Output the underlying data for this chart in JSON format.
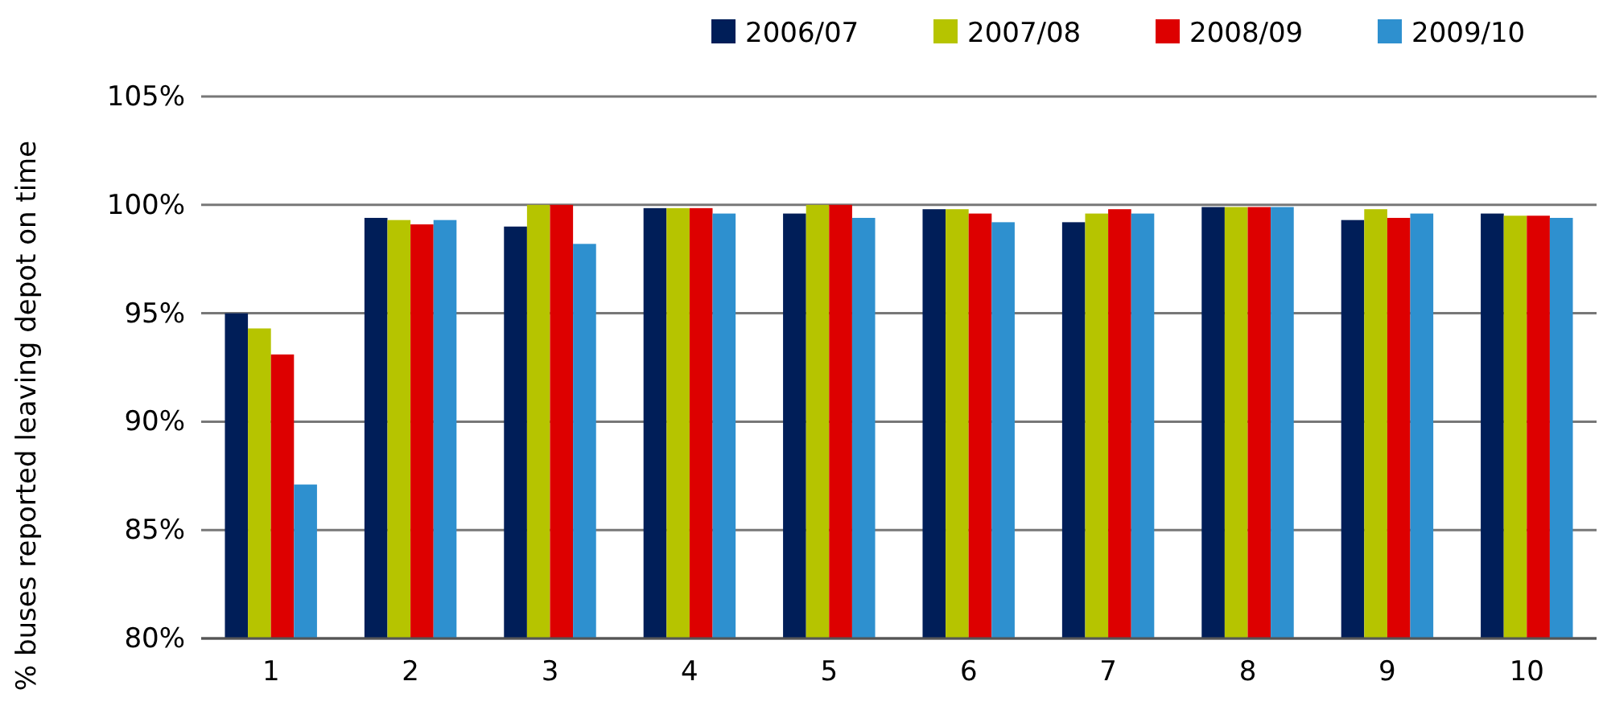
{
  "chart_data": {
    "type": "bar",
    "ylabel": "% buses reported leaving depot on time",
    "categories": [
      "1",
      "2",
      "3",
      "4",
      "5",
      "6",
      "7",
      "8",
      "9",
      "10"
    ],
    "series": [
      {
        "name": "2006/07",
        "color": "#001e58",
        "values": [
          95.0,
          99.4,
          99.0,
          99.85,
          99.6,
          99.8,
          99.2,
          99.9,
          99.3,
          99.6
        ]
      },
      {
        "name": "2007/08",
        "color": "#b6c400",
        "values": [
          94.3,
          99.3,
          100,
          99.85,
          100,
          99.8,
          99.6,
          99.9,
          99.8,
          99.5
        ]
      },
      {
        "name": "2008/09",
        "color": "#dd0000",
        "values": [
          93.1,
          99.1,
          100,
          99.85,
          100,
          99.6,
          99.8,
          99.9,
          99.4,
          99.5
        ]
      },
      {
        "name": "2009/10",
        "color": "#2e90cf",
        "values": [
          87.1,
          99.3,
          98.2,
          99.6,
          99.4,
          99.2,
          99.6,
          99.9,
          99.6,
          99.4
        ]
      }
    ],
    "ylim": [
      80,
      105
    ],
    "yticks": [
      {
        "value": 80,
        "label": "80%"
      },
      {
        "value": 85,
        "label": "85%"
      },
      {
        "value": 90,
        "label": "90%"
      },
      {
        "value": 95,
        "label": "95%"
      },
      {
        "value": 100,
        "label": "100%"
      },
      {
        "value": 105,
        "label": "105%"
      }
    ],
    "grid": "y",
    "legend": "top right"
  }
}
